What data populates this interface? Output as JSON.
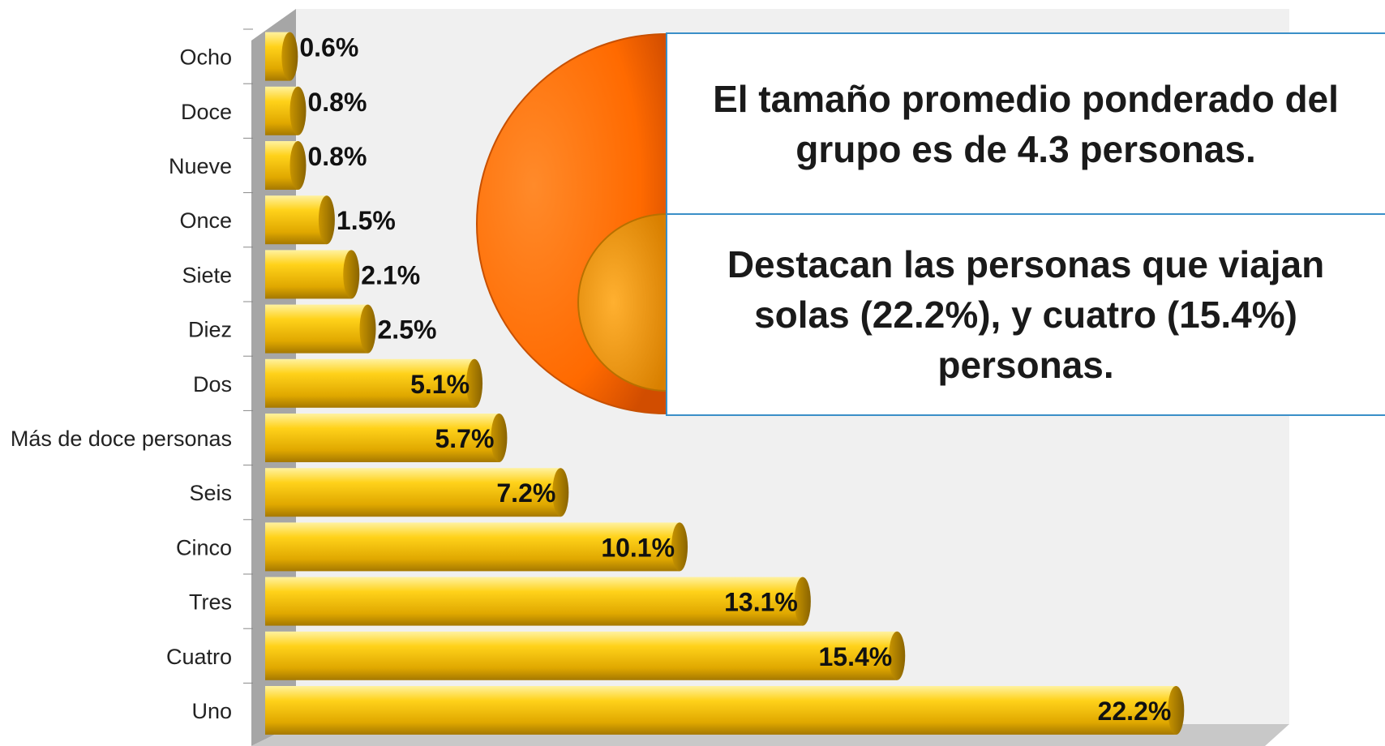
{
  "chart_data": {
    "type": "bar",
    "orientation": "horizontal",
    "categories": [
      "Ocho",
      "Doce",
      "Nueve",
      "Once",
      "Siete",
      "Diez",
      "Dos",
      "Más de doce personas",
      "Seis",
      "Cinco",
      "Tres",
      "Cuatro",
      "Uno"
    ],
    "values": [
      0.6,
      0.8,
      0.8,
      1.5,
      2.1,
      2.5,
      5.1,
      5.7,
      7.2,
      10.1,
      13.1,
      15.4,
      22.2
    ],
    "value_labels": [
      "0.6%",
      "0.8%",
      "0.8%",
      "1.5%",
      "2.1%",
      "2.5%",
      "5.1%",
      "5.7%",
      "7.2%",
      "10.1%",
      "13.1%",
      "15.4%",
      "22.2%"
    ],
    "color": "#f5c400",
    "xlim": [
      0,
      25
    ],
    "annotations": [
      "El tamaño promedio ponderado del grupo es de 4.3 personas.",
      "Destacan las personas que viajan solas (22.2%), y cuatro (15.4%) personas."
    ]
  }
}
